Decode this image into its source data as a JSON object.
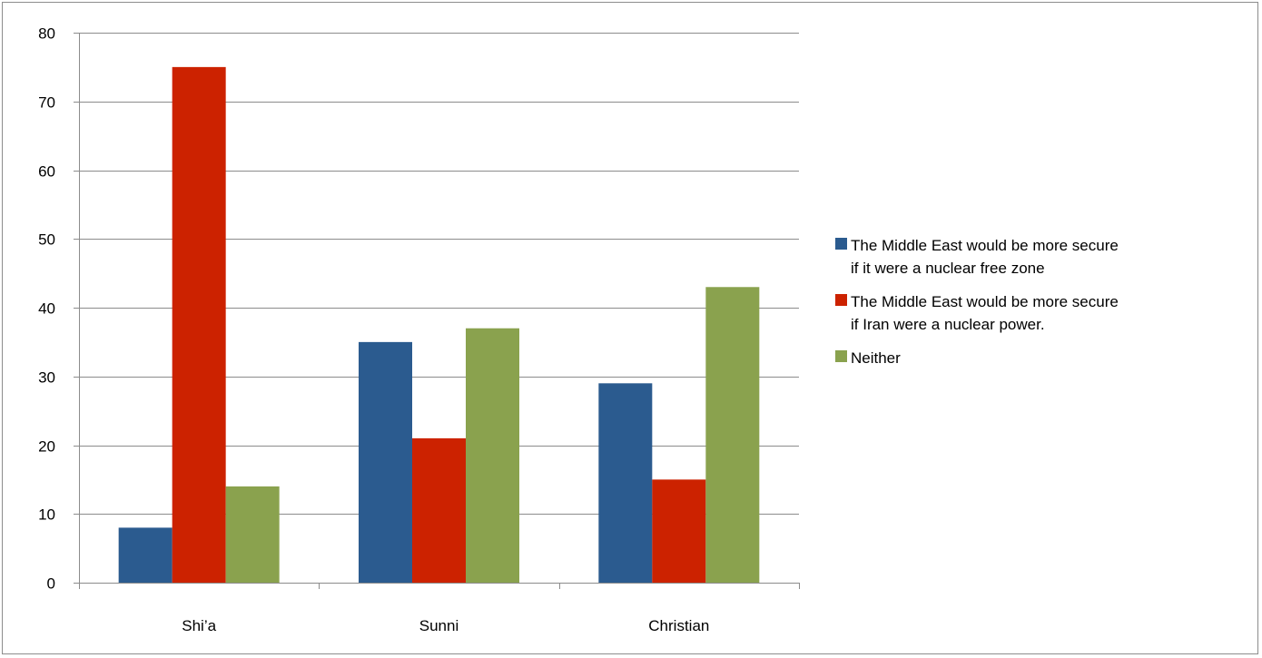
{
  "chart_data": {
    "type": "bar",
    "categories": [
      "Shi’a",
      "Sunni",
      "Christian"
    ],
    "series": [
      {
        "name": "The Middle East would be more secure if it were a nuclear free zone",
        "name_lines": [
          "The Middle East would be more secure",
          "if it were a nuclear free zone"
        ],
        "color": "#2b5b8f",
        "values": [
          8,
          35,
          29
        ]
      },
      {
        "name": "The Middle East would be more secure if Iran were a nuclear power.",
        "name_lines": [
          "The Middle East would be more secure",
          "if Iran were a nuclear power."
        ],
        "color": "#cc2200",
        "values": [
          75,
          21,
          15
        ]
      },
      {
        "name": "Neither",
        "name_lines": [
          "Neither"
        ],
        "color": "#8aa24e",
        "values": [
          14,
          37,
          43
        ]
      }
    ],
    "ylim": [
      0,
      80
    ],
    "yticks": [
      0,
      10,
      20,
      30,
      40,
      50,
      60,
      70,
      80
    ],
    "title": "",
    "xlabel": "",
    "ylabel": "",
    "grid": true,
    "legend": "right"
  }
}
